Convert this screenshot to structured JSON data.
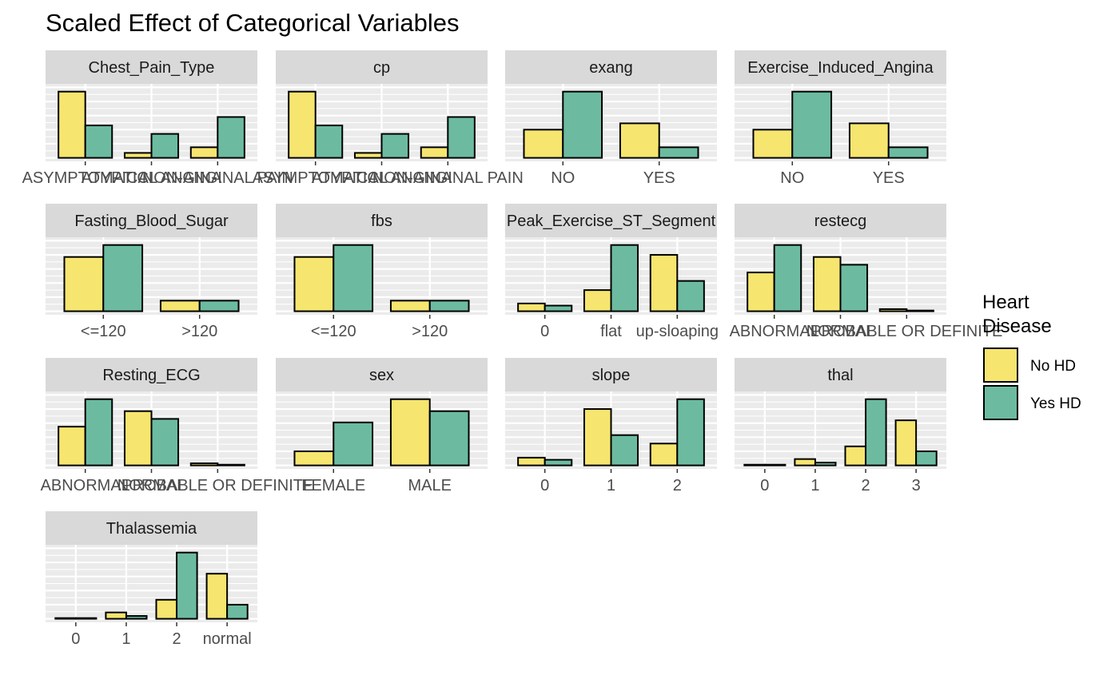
{
  "chart_data": {
    "type": "bar",
    "title": "Scaled Effect of Categorical Variables",
    "xlabel": "",
    "ylabel": "",
    "grid": true,
    "y_axis_labels": "none",
    "legend": {
      "title": "Heart Disease",
      "placement": "right",
      "items": [
        {
          "label": "No HD",
          "color": "#F6E56F"
        },
        {
          "label": "Yes HD",
          "color": "#6CBBA0"
        }
      ]
    },
    "series": [
      {
        "name": "No HD",
        "color": "#F6E56F"
      },
      {
        "name": "Yes HD",
        "color": "#6CBBA0"
      }
    ],
    "panels": [
      {
        "title": "Chest_Pain_Type",
        "categories": [
          "ASYMPTOMATIC",
          "ATYPICAL ANGINA",
          "NON-ANGINAL PAIN"
        ],
        "no_hd": [
          0.94,
          0.07,
          0.15
        ],
        "yes_hd": [
          0.46,
          0.34,
          0.58
        ]
      },
      {
        "title": "cp",
        "categories": [
          "ASYMPTOMATIC",
          "ATYPICAL ANGINA",
          "NON-ANGINAL PAIN"
        ],
        "no_hd": [
          0.94,
          0.07,
          0.15
        ],
        "yes_hd": [
          0.46,
          0.34,
          0.58
        ]
      },
      {
        "title": "exang",
        "categories": [
          "NO",
          "YES"
        ],
        "no_hd": [
          0.4,
          0.49
        ],
        "yes_hd": [
          0.94,
          0.15
        ]
      },
      {
        "title": "Exercise_Induced_Angina",
        "categories": [
          "NO",
          "YES"
        ],
        "no_hd": [
          0.4,
          0.49
        ],
        "yes_hd": [
          0.94,
          0.15
        ]
      },
      {
        "title": "Fasting_Blood_Sugar",
        "categories": [
          "<=120",
          ">120"
        ],
        "no_hd": [
          0.77,
          0.15
        ],
        "yes_hd": [
          0.94,
          0.15
        ]
      },
      {
        "title": "fbs",
        "categories": [
          "<=120",
          ">120"
        ],
        "no_hd": [
          0.77,
          0.15
        ],
        "yes_hd": [
          0.94,
          0.15
        ]
      },
      {
        "title": "Peak_Exercise_ST_Segment",
        "categories": [
          "0",
          "flat",
          "up-sloaping"
        ],
        "no_hd": [
          0.11,
          0.3,
          0.8
        ],
        "yes_hd": [
          0.08,
          0.94,
          0.43
        ]
      },
      {
        "title": "restecg",
        "categories": [
          "ABNORMAL",
          "NORMAL",
          "PROBABLE OR DEFINITE"
        ],
        "no_hd": [
          0.55,
          0.77,
          0.03
        ],
        "yes_hd": [
          0.94,
          0.66,
          0.01
        ]
      },
      {
        "title": "Resting_ECG",
        "categories": [
          "ABNORMAL",
          "NORMAL",
          "PROBABLE OR DEFINITE"
        ],
        "no_hd": [
          0.55,
          0.77,
          0.03
        ],
        "yes_hd": [
          0.94,
          0.66,
          0.01
        ]
      },
      {
        "title": "sex",
        "categories": [
          "FEMALE",
          "MALE"
        ],
        "no_hd": [
          0.2,
          0.94
        ],
        "yes_hd": [
          0.61,
          0.77
        ]
      },
      {
        "title": "slope",
        "categories": [
          "0",
          "1",
          "2"
        ],
        "no_hd": [
          0.11,
          0.8,
          0.31
        ],
        "yes_hd": [
          0.08,
          0.43,
          0.94
        ]
      },
      {
        "title": "thal",
        "categories": [
          "0",
          "1",
          "2",
          "3"
        ],
        "no_hd": [
          0.01,
          0.09,
          0.27,
          0.64
        ],
        "yes_hd": [
          0.01,
          0.04,
          0.94,
          0.2
        ]
      },
      {
        "title": "Thalassemia",
        "categories": [
          "0",
          "1",
          "2",
          "normal"
        ],
        "no_hd": [
          0.01,
          0.09,
          0.27,
          0.64
        ],
        "yes_hd": [
          0.01,
          0.04,
          0.94,
          0.2
        ]
      }
    ]
  }
}
